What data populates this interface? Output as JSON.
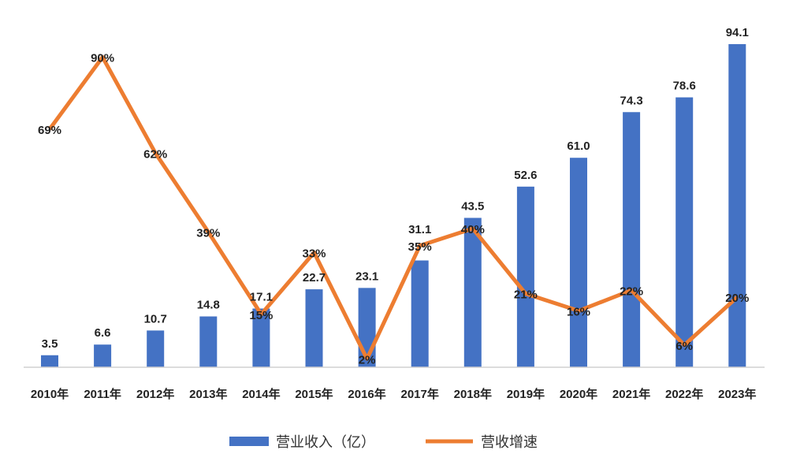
{
  "chart_data": {
    "type": "bar+line",
    "title": "",
    "categories": [
      "2010年",
      "2011年",
      "2012年",
      "2013年",
      "2014年",
      "2015年",
      "2016年",
      "2017年",
      "2018年",
      "2019年",
      "2020年",
      "2021年",
      "2022年",
      "2023年"
    ],
    "series": [
      {
        "name": "营业收入（亿）",
        "type": "bar",
        "color": "#4472C4",
        "values": [
          3.5,
          6.6,
          10.7,
          14.8,
          17.1,
          22.7,
          23.1,
          31.1,
          43.5,
          52.6,
          61.0,
          74.3,
          78.6,
          94.1
        ],
        "labels": [
          "3.5",
          "6.6",
          "10.7",
          "14.8",
          "17.1",
          "22.7",
          "23.1",
          "31.1",
          "43.5",
          "52.6",
          "61.0",
          "74.3",
          "78.6",
          "94.1"
        ]
      },
      {
        "name": "营收增速",
        "type": "line",
        "color": "#ED7D31",
        "values": [
          69,
          90,
          62,
          39,
          15,
          33,
          2,
          35,
          40,
          21,
          16,
          22,
          6,
          20
        ],
        "labels": [
          "69%",
          "90%",
          "62%",
          "39%",
          "15%",
          "33%",
          "2%",
          "35%",
          "40%",
          "21%",
          "16%",
          "22%",
          "6%",
          "20%"
        ]
      }
    ],
    "ylim": [
      0,
      94.1
    ],
    "grid": false,
    "legend_position": "bottom"
  }
}
